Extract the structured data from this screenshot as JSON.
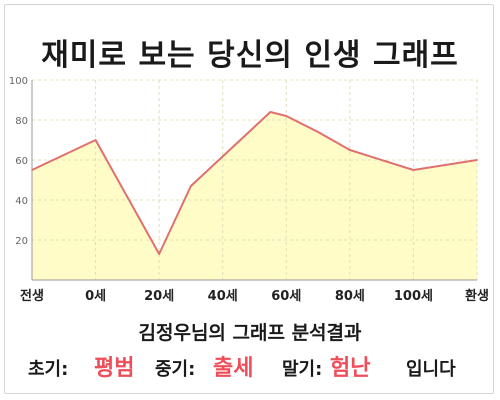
{
  "title": "재미로 보는 당신의 인생 그래프",
  "chart_data": {
    "type": "area",
    "x_labels": [
      "전생",
      "0세",
      "20세",
      "40세",
      "60세",
      "80세",
      "100세",
      "환생"
    ],
    "points": [
      {
        "x": "전생",
        "y": 55
      },
      {
        "x": "0세",
        "y": 70
      },
      {
        "x": "20세",
        "y": 13
      },
      {
        "x": "30세",
        "y": 47
      },
      {
        "x": "55세",
        "y": 84
      },
      {
        "x": "60세",
        "y": 82
      },
      {
        "x": "70세",
        "y": 74
      },
      {
        "x": "80세",
        "y": 65
      },
      {
        "x": "100세",
        "y": 55
      },
      {
        "x": "환생",
        "y": 60
      }
    ],
    "y_ticks": [
      20,
      40,
      60,
      80,
      100
    ],
    "ylim": [
      0,
      100
    ],
    "grid": true,
    "colors": {
      "line": "#e07070",
      "fill": "#fffcc8",
      "grid": "#e0e0b8",
      "axis": "#999999"
    }
  },
  "summary": {
    "title": "김정우님의 그래프 분석결과",
    "early_label": "초기:",
    "early_value": "평범",
    "middle_label": "중기:",
    "middle_value": "출세",
    "late_label": "말기:",
    "late_value": "험난",
    "ending": "입니다",
    "value_color": "#ee4d5a"
  }
}
